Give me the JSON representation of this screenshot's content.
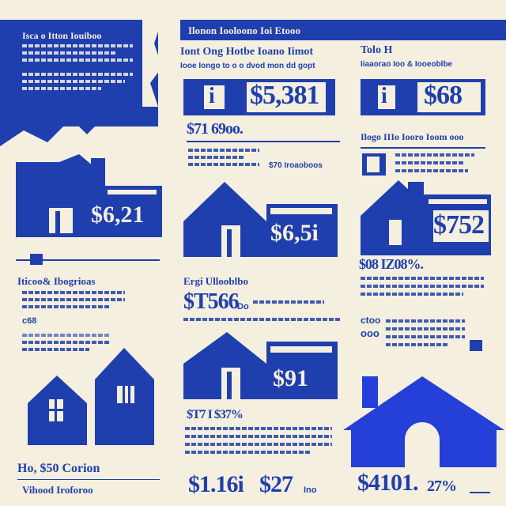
{
  "left": {
    "banner_title": "Isca o Itton Iouiboo",
    "house1_price": "$6,21",
    "section_heading": "Iticoo& Ibogrioas",
    "section_value": "c68",
    "bottom_label": "Ho, $50 Corion",
    "bottom_sub": "Vihood Iroforoo"
  },
  "middle": {
    "header_bar": "Ilonon Iooloono Ioi Etooo",
    "title": "Iont Ong Hotbe Ioano Iimot",
    "subtitle": "Iooe Iongo to o o dvod mon dd gopt",
    "price_box": "$5,381",
    "price_box_icon": "i",
    "stat_price": "$71 69oo.",
    "stat_note": "$70 Iroaoboos",
    "house2_price": "$6,5i",
    "heading2": "Ergi Ullooblbo",
    "big_price": "$T566",
    "big_price_suffix": "Do",
    "house3_price": "$91",
    "stat3": "$T7 I $37%",
    "bottom_price_a": "$1.16i",
    "bottom_price_b": "$27",
    "bottom_suffix": "Ino"
  },
  "right": {
    "header": "Tolo H",
    "sub": "Iiaaorao Ioo & Iooeoblbe",
    "price_box": "$68",
    "price_box_icon": "i",
    "heading": "Ilogo IIIo Iooro Ioom ooo",
    "house_price": "$752",
    "stat": "$08 IZ08%.",
    "stat_b": "ctoo",
    "stat_c": "ooo",
    "bottom_price": "$4101.",
    "bottom_pct": "27%"
  },
  "colors": {
    "primary": "#1f3fae",
    "background": "#f4efdf",
    "bright_blue": "#2440d8"
  }
}
